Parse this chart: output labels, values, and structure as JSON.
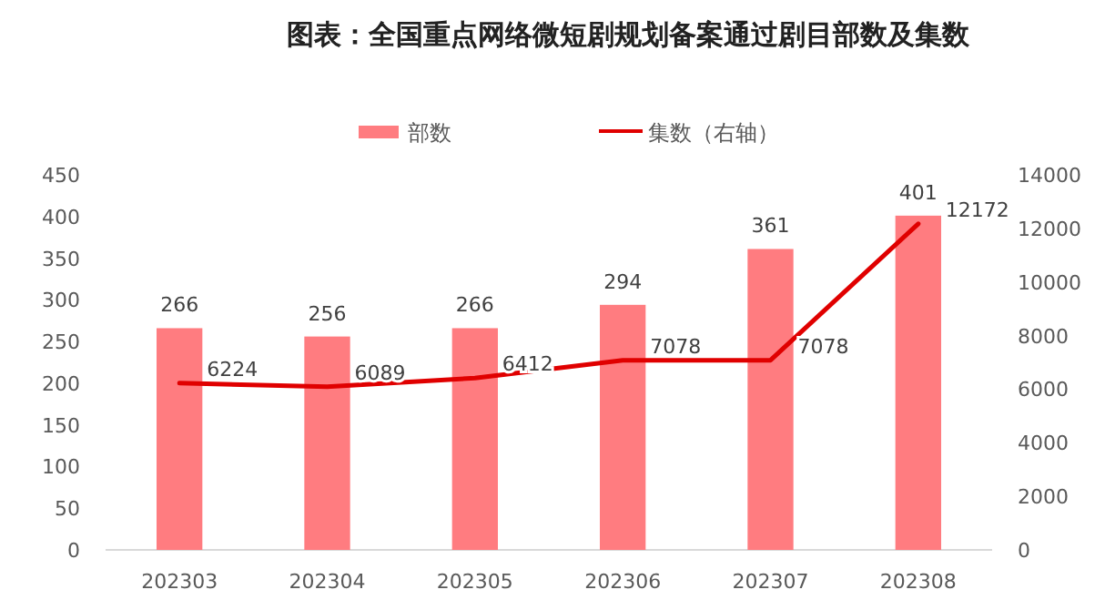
{
  "chart_data": {
    "type": "bar",
    "title": "图表：全国重点网络微短剧规划备案通过剧目部数及集数",
    "categories": [
      "202303",
      "202304",
      "202305",
      "202306",
      "202307",
      "202308"
    ],
    "series": [
      {
        "name": "部数",
        "color": "#ff7c80",
        "values": [
          266,
          256,
          266,
          294,
          361,
          401
        ]
      },
      {
        "name": "集数（右轴）",
        "type": "line",
        "axis": "y2",
        "color": "#e00000",
        "values": [
          6224,
          6089,
          6412,
          7078,
          7078,
          12172
        ]
      }
    ],
    "ylim": [
      0,
      450
    ],
    "yticks": [
      0,
      50,
      100,
      150,
      200,
      250,
      300,
      350,
      400,
      450
    ],
    "y2lim": [
      0,
      14000
    ],
    "y2ticks": [
      0,
      2000,
      4000,
      6000,
      8000,
      10000,
      12000,
      14000
    ],
    "data_labels": true,
    "legend": "top",
    "grid": false
  }
}
